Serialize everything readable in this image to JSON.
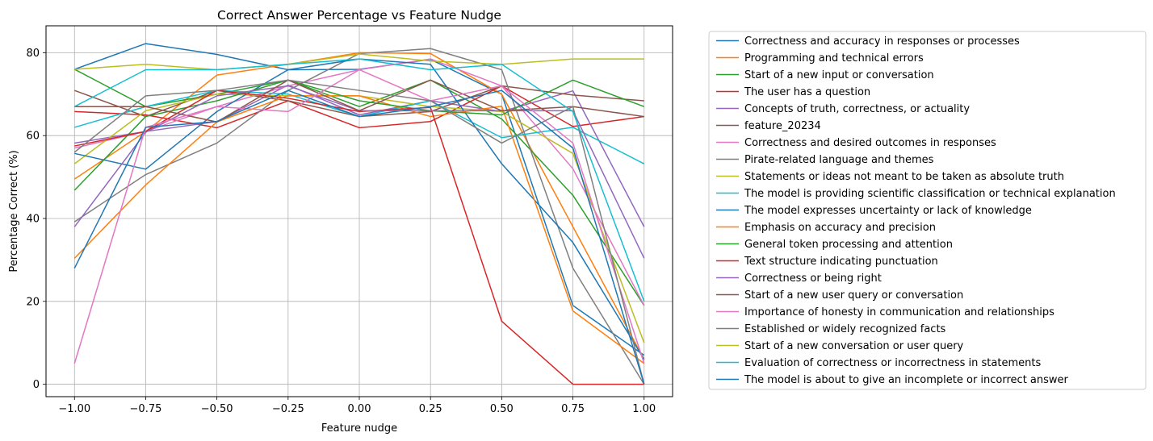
{
  "chart_data": {
    "type": "line",
    "title": "Correct Answer Percentage vs Feature Nudge",
    "xlabel": "Feature nudge",
    "ylabel": "Percentage Correct (%)",
    "x": [
      -1.0,
      -0.75,
      -0.5,
      -0.25,
      0.0,
      0.25,
      0.5,
      0.75,
      1.0
    ],
    "xticks": [
      -1.0,
      -0.75,
      -0.5,
      -0.25,
      0.0,
      0.25,
      0.5,
      0.75,
      1.0
    ],
    "xtick_labels": [
      "−1.00",
      "−0.75",
      "−0.50",
      "−0.25",
      "0.00",
      "0.25",
      "0.50",
      "0.75",
      "1.00"
    ],
    "yticks": [
      0,
      20,
      40,
      60,
      80
    ],
    "ytick_labels": [
      "0",
      "20",
      "40",
      "60",
      "80"
    ],
    "xlim": [
      -1.1,
      1.1
    ],
    "ylim": [
      -3,
      86.5
    ],
    "grid": true,
    "legend_position": "outside-right",
    "series": [
      {
        "name": "Correctness and accuracy in responses or processes",
        "color": "#1f77b4",
        "values": [
          76.0,
          82.2,
          79.6,
          75.9,
          76.0,
          78.4,
          70.0,
          19.0,
          7.0
        ]
      },
      {
        "name": "Programming and technical errors",
        "color": "#ff7f0e",
        "values": [
          49.5,
          61.0,
          74.6,
          77.2,
          80.0,
          79.8,
          70.0,
          38.0,
          6.0
        ]
      },
      {
        "name": "Start of a new input or conversation",
        "color": "#2ca02c",
        "values": [
          76.0,
          67.0,
          70.0,
          73.4,
          67.0,
          73.4,
          64.0,
          45.6,
          19.0
        ]
      },
      {
        "name": "The user has a question",
        "color": "#d62728",
        "values": [
          65.8,
          65.0,
          61.9,
          68.4,
          61.9,
          63.4,
          72.0,
          62.2,
          64.6
        ]
      },
      {
        "name": "Concepts of truth, correctness, or actuality",
        "color": "#9467bd",
        "values": [
          58.2,
          61.0,
          63.4,
          72.2,
          65.0,
          68.4,
          65.8,
          70.8,
          38.0
        ]
      },
      {
        "name": "feature_20234",
        "color": "#8c564b",
        "values": [
          70.9,
          64.6,
          70.9,
          68.4,
          64.6,
          65.8,
          72.0,
          69.8,
          68.4
        ]
      },
      {
        "name": "Correctness and desired outcomes in responses",
        "color": "#e377c2",
        "values": [
          57.0,
          61.0,
          67.0,
          72.0,
          75.9,
          78.5,
          72.0,
          52.0,
          19.0
        ]
      },
      {
        "name": "Pirate-related language and themes",
        "color": "#7f7f7f",
        "values": [
          39.2,
          50.6,
          58.2,
          70.9,
          79.8,
          81.0,
          75.9,
          28.0,
          0.0
        ]
      },
      {
        "name": "Statements or ideas not meant to be taken as absolute truth",
        "color": "#bcbd22",
        "values": [
          53.2,
          66.0,
          70.0,
          69.6,
          69.6,
          67.0,
          65.8,
          55.7,
          10.0
        ]
      },
      {
        "name": "The model is providing scientific classification or technical explanation",
        "color": "#17becf",
        "values": [
          62.0,
          67.0,
          70.9,
          70.0,
          64.6,
          68.4,
          59.5,
          62.0,
          53.2
        ]
      },
      {
        "name": "The model expresses uncertainty or lack of knowledge",
        "color": "#1f77b4",
        "values": [
          55.7,
          51.9,
          65.8,
          75.9,
          78.5,
          77.2,
          53.2,
          34.2,
          6.0
        ]
      },
      {
        "name": "Emphasis on accuracy and precision",
        "color": "#ff7f0e",
        "values": [
          30.4,
          48.1,
          63.3,
          69.6,
          69.6,
          64.6,
          67.1,
          17.7,
          5.0
        ]
      },
      {
        "name": "General token processing and attention",
        "color": "#2ca02c",
        "values": [
          46.8,
          64.6,
          68.4,
          73.4,
          68.4,
          66.0,
          65.0,
          73.4,
          67.0
        ]
      },
      {
        "name": "Text structure indicating punctuation",
        "color": "#d62728",
        "values": [
          57.5,
          61.0,
          70.9,
          69.0,
          65.8,
          66.8,
          15.2,
          0.0,
          0.0
        ]
      },
      {
        "name": "Correctness or being right",
        "color": "#9467bd",
        "values": [
          38.0,
          60.8,
          69.6,
          72.0,
          66.0,
          66.0,
          66.0,
          66.0,
          30.4
        ]
      },
      {
        "name": "Start of a new user query or conversation",
        "color": "#8c564b",
        "values": [
          67.0,
          67.0,
          63.3,
          73.4,
          66.0,
          73.4,
          66.0,
          67.0,
          64.6
        ]
      },
      {
        "name": "Importance of honesty in communication and relationships",
        "color": "#e377c2",
        "values": [
          5.0,
          62.0,
          67.0,
          65.8,
          75.9,
          68.4,
          72.0,
          58.2,
          5.0
        ]
      },
      {
        "name": "Established or widely recognized facts",
        "color": "#7f7f7f",
        "values": [
          56.0,
          69.6,
          70.9,
          73.4,
          70.9,
          68.4,
          58.2,
          67.0,
          0.0
        ]
      },
      {
        "name": "Start of a new conversation or user query",
        "color": "#bcbd22",
        "values": [
          76.0,
          77.2,
          75.9,
          77.2,
          79.7,
          78.0,
          77.2,
          78.5,
          78.5
        ]
      },
      {
        "name": "Evaluation of correctness or incorrectness in statements",
        "color": "#17becf",
        "values": [
          67.0,
          75.9,
          75.9,
          77.2,
          78.5,
          75.9,
          77.2,
          65.8,
          20.0
        ]
      },
      {
        "name": "The model is about to give an incomplete or incorrect answer",
        "color": "#1f77b4",
        "values": [
          28.0,
          62.0,
          63.4,
          70.9,
          64.6,
          67.0,
          70.9,
          57.0,
          0.0
        ]
      }
    ]
  }
}
